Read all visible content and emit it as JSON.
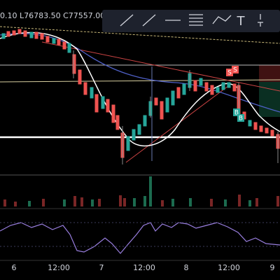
{
  "header": {
    "ohlc_text": "0.10 L76783.50 C77557.00 +"
  },
  "toolbar": {
    "text_tool": "T"
  },
  "markers": {
    "sell": [
      "S",
      "S"
    ],
    "buy": [
      "B",
      "B"
    ]
  },
  "x_axis": {
    "labels": [
      "6",
      "12:00",
      "7",
      "12:00",
      "8",
      "12:00",
      "9"
    ]
  }
}
